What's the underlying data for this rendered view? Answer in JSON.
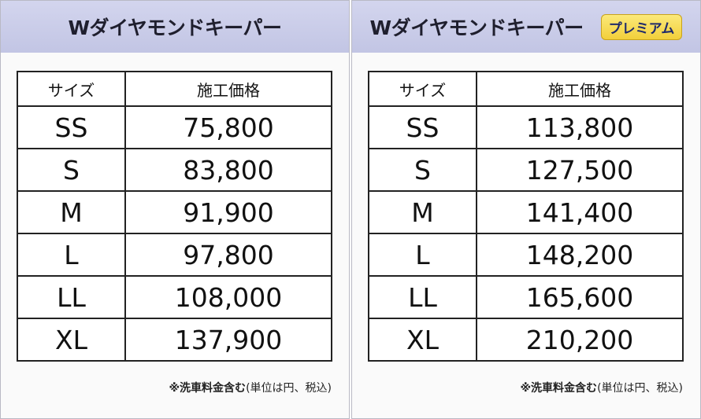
{
  "panels": [
    {
      "title": "Wダイヤモンドキーパー",
      "table": {
        "header": [
          "サイズ",
          "施工価格"
        ],
        "rows": [
          [
            "SS",
            "75,800"
          ],
          [
            "S",
            "83,800"
          ],
          [
            "M",
            "91,900"
          ],
          [
            "L",
            "97,800"
          ],
          [
            "LL",
            "108,000"
          ],
          [
            "XL",
            "137,900"
          ]
        ]
      },
      "note": {
        "bold": "※洗車料金含む",
        "rest": "(単位は円、税込)"
      }
    },
    {
      "title": "Wダイヤモンドキーパー",
      "badge": "プレミアム",
      "table": {
        "header": [
          "サイズ",
          "施工価格"
        ],
        "rows": [
          [
            "SS",
            "113,800"
          ],
          [
            "S",
            "127,500"
          ],
          [
            "M",
            "141,400"
          ],
          [
            "L",
            "148,200"
          ],
          [
            "LL",
            "165,600"
          ],
          [
            "XL",
            "210,200"
          ]
        ]
      },
      "note": {
        "bold": "※洗車料金含む",
        "rest": "(単位は円、税込)"
      }
    }
  ]
}
